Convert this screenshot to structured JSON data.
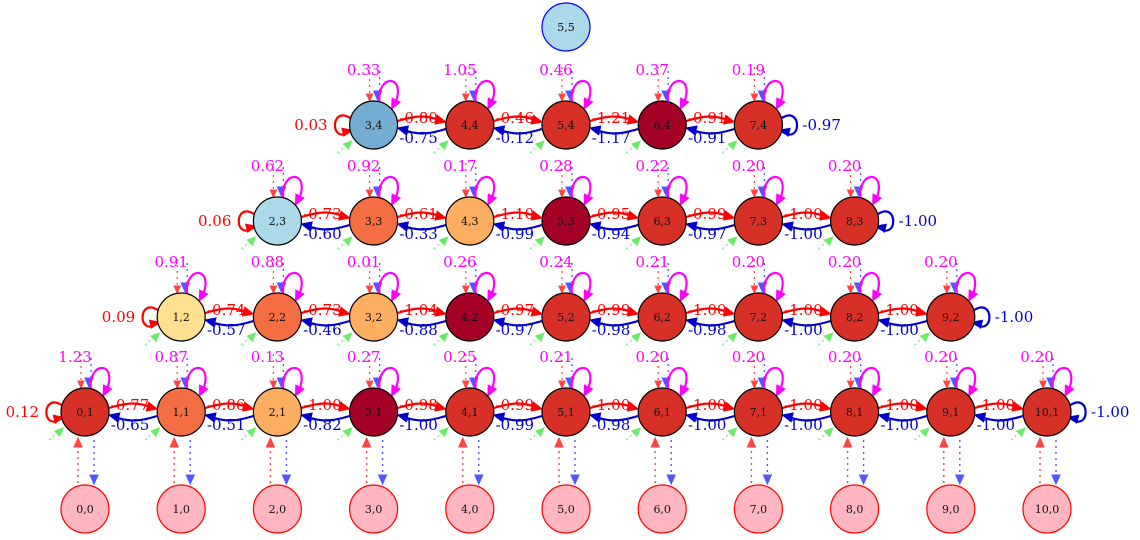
{
  "colors": {
    "right_arrow": "#ff0000",
    "left_arrow": "#0000cc",
    "self_loop": "#ff00ff",
    "terminal_fill": "#ffb6c1",
    "terminal_stroke": "#ff0000",
    "down_dotted": "#5555ff",
    "up_dotted": "#ff4444",
    "green_marker": "#66ee66"
  },
  "palette": {
    "dark": "#a50026",
    "red": "#d73027",
    "orange": "#f46d43",
    "peach": "#fdae61",
    "yellow": "#fee090",
    "lightblue": "#abd9e9",
    "midblue": "#74add1"
  },
  "nodes": [
    {
      "id": "5,5",
      "row": 5,
      "col": 5,
      "fill": "lightblue"
    },
    {
      "id": "3,4",
      "row": 4,
      "col": 3,
      "fill": "midblue",
      "self": "0.33",
      "left_loop": "0.03"
    },
    {
      "id": "4,4",
      "row": 4,
      "col": 4,
      "fill": "red",
      "self": "1.05"
    },
    {
      "id": "5,4",
      "row": 4,
      "col": 5,
      "fill": "red",
      "self": "0.46"
    },
    {
      "id": "6,4",
      "row": 4,
      "col": 6,
      "fill": "dark",
      "self": "0.37"
    },
    {
      "id": "7,4",
      "row": 4,
      "col": 7,
      "fill": "red",
      "self": "0.19",
      "right_loop": "-0.97"
    },
    {
      "id": "2,3",
      "row": 3,
      "col": 2,
      "fill": "lightblue",
      "self": "0.62",
      "left_loop": "0.06"
    },
    {
      "id": "3,3",
      "row": 3,
      "col": 3,
      "fill": "orange",
      "self": "0.92"
    },
    {
      "id": "4,3",
      "row": 3,
      "col": 4,
      "fill": "peach",
      "self": "0.17"
    },
    {
      "id": "5,3",
      "row": 3,
      "col": 5,
      "fill": "dark",
      "self": "0.28"
    },
    {
      "id": "6,3",
      "row": 3,
      "col": 6,
      "fill": "red",
      "self": "0.22"
    },
    {
      "id": "7,3",
      "row": 3,
      "col": 7,
      "fill": "red",
      "self": "0.20"
    },
    {
      "id": "8,3",
      "row": 3,
      "col": 8,
      "fill": "red",
      "self": "0.20",
      "right_loop": "-1.00"
    },
    {
      "id": "1,2",
      "row": 2,
      "col": 1,
      "fill": "yellow",
      "self": "0.91",
      "left_loop": "0.09"
    },
    {
      "id": "2,2",
      "row": 2,
      "col": 2,
      "fill": "orange",
      "self": "0.88"
    },
    {
      "id": "3,2",
      "row": 2,
      "col": 3,
      "fill": "peach",
      "self": "0.01"
    },
    {
      "id": "4,2",
      "row": 2,
      "col": 4,
      "fill": "dark",
      "self": "0.26"
    },
    {
      "id": "5,2",
      "row": 2,
      "col": 5,
      "fill": "red",
      "self": "0.24"
    },
    {
      "id": "6,2",
      "row": 2,
      "col": 6,
      "fill": "red",
      "self": "0.21"
    },
    {
      "id": "7,2",
      "row": 2,
      "col": 7,
      "fill": "red",
      "self": "0.20"
    },
    {
      "id": "8,2",
      "row": 2,
      "col": 8,
      "fill": "red",
      "self": "0.20"
    },
    {
      "id": "9,2",
      "row": 2,
      "col": 9,
      "fill": "red",
      "self": "0.20",
      "right_loop": "-1.00"
    },
    {
      "id": "0,1",
      "row": 1,
      "col": 0,
      "fill": "red",
      "self": "1.23",
      "left_loop": "0.12"
    },
    {
      "id": "1,1",
      "row": 1,
      "col": 1,
      "fill": "orange",
      "self": "0.87"
    },
    {
      "id": "2,1",
      "row": 1,
      "col": 2,
      "fill": "peach",
      "self": "0.13"
    },
    {
      "id": "3,1",
      "row": 1,
      "col": 3,
      "fill": "dark",
      "self": "0.27"
    },
    {
      "id": "4,1",
      "row": 1,
      "col": 4,
      "fill": "red",
      "self": "0.25"
    },
    {
      "id": "5,1",
      "row": 1,
      "col": 5,
      "fill": "red",
      "self": "0.21"
    },
    {
      "id": "6,1",
      "row": 1,
      "col": 6,
      "fill": "red",
      "self": "0.20"
    },
    {
      "id": "7,1",
      "row": 1,
      "col": 7,
      "fill": "red",
      "self": "0.20"
    },
    {
      "id": "8,1",
      "row": 1,
      "col": 8,
      "fill": "red",
      "self": "0.20"
    },
    {
      "id": "9,1",
      "row": 1,
      "col": 9,
      "fill": "red",
      "self": "0.20"
    },
    {
      "id": "10,1",
      "row": 1,
      "col": 10,
      "fill": "red",
      "self": "0.20",
      "right_loop": "-1.00"
    },
    {
      "id": "0,0",
      "row": 0,
      "col": 0,
      "fill": "terminal"
    },
    {
      "id": "1,0",
      "row": 0,
      "col": 1,
      "fill": "terminal"
    },
    {
      "id": "2,0",
      "row": 0,
      "col": 2,
      "fill": "terminal"
    },
    {
      "id": "3,0",
      "row": 0,
      "col": 3,
      "fill": "terminal"
    },
    {
      "id": "4,0",
      "row": 0,
      "col": 4,
      "fill": "terminal"
    },
    {
      "id": "5,0",
      "row": 0,
      "col": 5,
      "fill": "terminal"
    },
    {
      "id": "6,0",
      "row": 0,
      "col": 6,
      "fill": "terminal"
    },
    {
      "id": "7,0",
      "row": 0,
      "col": 7,
      "fill": "terminal"
    },
    {
      "id": "8,0",
      "row": 0,
      "col": 8,
      "fill": "terminal"
    },
    {
      "id": "9,0",
      "row": 0,
      "col": 9,
      "fill": "terminal"
    },
    {
      "id": "10,0",
      "row": 0,
      "col": 10,
      "fill": "terminal"
    }
  ],
  "edges": [
    {
      "row": 4,
      "from": 3,
      "to": 4,
      "right": "-0.80",
      "left": "-0.75"
    },
    {
      "row": 4,
      "from": 4,
      "to": 5,
      "right": "-0.46",
      "left": "-0.12"
    },
    {
      "row": 4,
      "from": 5,
      "to": 6,
      "right": "-1.21",
      "left": "-1.17"
    },
    {
      "row": 4,
      "from": 6,
      "to": 7,
      "right": "-0.91",
      "left": "-0.91"
    },
    {
      "row": 3,
      "from": 2,
      "to": 3,
      "right": "-0.73",
      "left": "-0.60"
    },
    {
      "row": 3,
      "from": 3,
      "to": 4,
      "right": "-0.61",
      "left": "-0.33"
    },
    {
      "row": 3,
      "from": 4,
      "to": 5,
      "right": "-1.10",
      "left": "-0.99"
    },
    {
      "row": 3,
      "from": 5,
      "to": 6,
      "right": "-0.95",
      "left": "-0.94"
    },
    {
      "row": 3,
      "from": 6,
      "to": 7,
      "right": "-0.99",
      "left": "-0.97"
    },
    {
      "row": 3,
      "from": 7,
      "to": 8,
      "right": "-1.00",
      "left": "-1.00"
    },
    {
      "row": 2,
      "from": 1,
      "to": 2,
      "right": "-0.74",
      "left": "-0.57"
    },
    {
      "row": 2,
      "from": 2,
      "to": 3,
      "right": "-0.73",
      "left": "-0.46"
    },
    {
      "row": 2,
      "from": 3,
      "to": 4,
      "right": "-1.04",
      "left": "-0.88"
    },
    {
      "row": 2,
      "from": 4,
      "to": 5,
      "right": "-0.97",
      "left": "-0.97"
    },
    {
      "row": 2,
      "from": 5,
      "to": 6,
      "right": "-0.99",
      "left": "-0.98"
    },
    {
      "row": 2,
      "from": 6,
      "to": 7,
      "right": "-1.00",
      "left": "-0.98"
    },
    {
      "row": 2,
      "from": 7,
      "to": 8,
      "right": "-1.00",
      "left": "-1.00"
    },
    {
      "row": 2,
      "from": 8,
      "to": 9,
      "right": "-1.00",
      "left": "-1.00"
    },
    {
      "row": 1,
      "from": 0,
      "to": 1,
      "right": "-0.77",
      "left": "-0.65"
    },
    {
      "row": 1,
      "from": 1,
      "to": 2,
      "right": "-0.86",
      "left": "-0.51"
    },
    {
      "row": 1,
      "from": 2,
      "to": 3,
      "right": "-1.00",
      "left": "-0.82"
    },
    {
      "row": 1,
      "from": 3,
      "to": 4,
      "right": "-0.98",
      "left": "-1.00"
    },
    {
      "row": 1,
      "from": 4,
      "to": 5,
      "right": "-0.99",
      "left": "-0.99"
    },
    {
      "row": 1,
      "from": 5,
      "to": 6,
      "right": "-1.00",
      "left": "-0.98"
    },
    {
      "row": 1,
      "from": 6,
      "to": 7,
      "right": "-1.00",
      "left": "-1.00"
    },
    {
      "row": 1,
      "from": 7,
      "to": 8,
      "right": "-1.00",
      "left": "-1.00"
    },
    {
      "row": 1,
      "from": 8,
      "to": 9,
      "right": "-1.00",
      "left": "-1.00"
    },
    {
      "row": 1,
      "from": 9,
      "to": 10,
      "right": "-1.00",
      "left": "-1.00"
    }
  ]
}
